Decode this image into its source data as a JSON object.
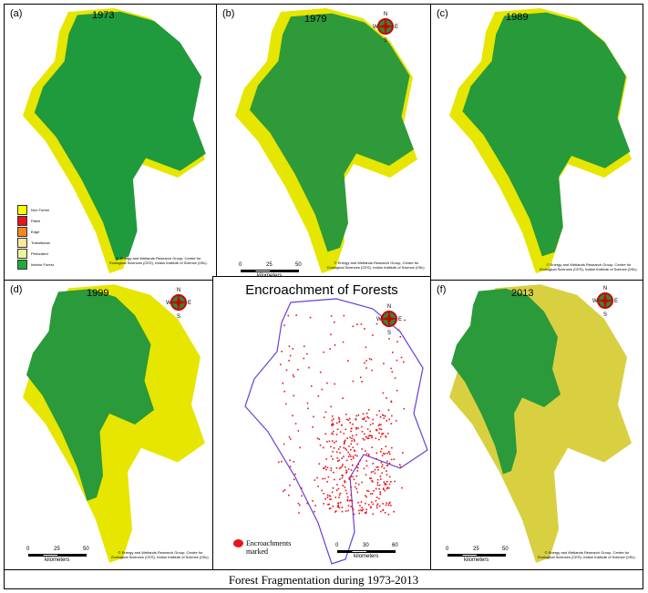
{
  "caption": "Forest Fragmentation during 1973-2013",
  "credit": "© Energy and Wetlands Research Group, Centre for Ecological Sciences (CES), Indian Institute of Science (IISc).",
  "scale": {
    "ticks": [
      "0",
      "25",
      "50"
    ],
    "unit": "kilometers"
  },
  "compass": {
    "n": "N",
    "s": "S",
    "e": "E",
    "w": "W"
  },
  "legend": [
    {
      "label": "Non Forest",
      "color": "#ffff00"
    },
    {
      "label": "Patch",
      "color": "#e8141c"
    },
    {
      "label": "Edge",
      "color": "#f7861f"
    },
    {
      "label": "Transitional",
      "color": "#fde79c"
    },
    {
      "label": "Perforated",
      "color": "#e9f59a"
    },
    {
      "label": "Interior Forest",
      "color": "#1faa3a"
    }
  ],
  "panels": [
    {
      "label": "(a)",
      "year": "1973"
    },
    {
      "label": "(b)",
      "year": "1979"
    },
    {
      "label": "(c)",
      "year": "1989"
    },
    {
      "label": "(d)",
      "year": "1999"
    },
    {
      "label": "(f)",
      "year": "2013"
    }
  ],
  "encroachment": {
    "title": "Encroachment of Forests",
    "legend": "Encroachments marked",
    "scale_ticks": [
      "0",
      "30",
      "60"
    ],
    "unit": "kilometers"
  }
}
